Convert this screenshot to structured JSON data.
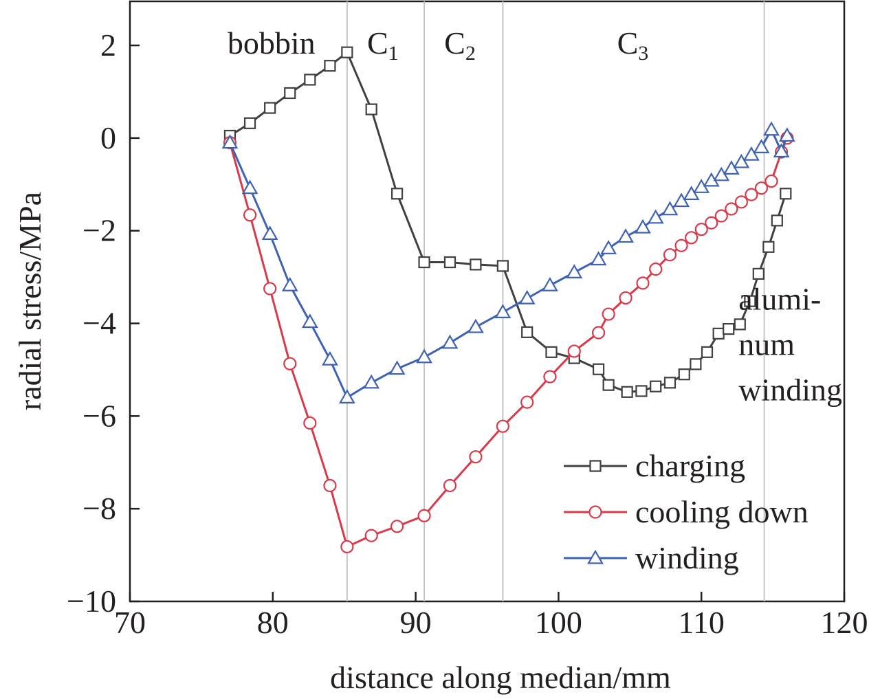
{
  "chart_data": {
    "type": "line",
    "xlabel": "distance along median/mm",
    "ylabel": "radial stress/MPa",
    "xlim": [
      70,
      120
    ],
    "ylim": [
      -10,
      3
    ],
    "xticks": [
      70,
      80,
      90,
      100,
      110,
      120
    ],
    "yticks": [
      -10,
      -8,
      -6,
      -4,
      -2,
      0,
      2
    ],
    "grid": false,
    "legend_position": "bottom-right",
    "region_boundaries": [
      85.2,
      90.6,
      96.1,
      114.4
    ],
    "region_labels": [
      {
        "text": "bobbin",
        "sub": "",
        "x": 79.9
      },
      {
        "text": "C",
        "sub": "1",
        "x": 87.7
      },
      {
        "text": "C",
        "sub": "2",
        "x": 93.1
      },
      {
        "text": "C",
        "sub": "3",
        "x": 105.2
      }
    ],
    "annotation": {
      "lines": [
        "alumi-",
        "num",
        "winding"
      ],
      "x": 112.6,
      "y": -3.7
    },
    "series": [
      {
        "name": "charging",
        "color": "#404040",
        "marker": "square",
        "x": [
          77.0,
          78.4,
          79.8,
          81.2,
          82.6,
          84.0,
          85.2,
          86.9,
          88.7,
          90.6,
          92.4,
          94.2,
          96.1,
          97.8,
          99.5,
          101.1,
          102.8,
          103.5,
          104.8,
          105.8,
          106.8,
          107.8,
          108.8,
          109.6,
          110.4,
          111.2,
          111.9,
          112.7,
          113.4,
          114.0,
          114.7,
          115.3,
          115.9
        ],
        "y": [
          0.05,
          0.32,
          0.65,
          0.97,
          1.26,
          1.56,
          1.85,
          0.62,
          -1.2,
          -2.68,
          -2.68,
          -2.73,
          -2.76,
          -4.19,
          -4.62,
          -4.75,
          -4.99,
          -5.33,
          -5.48,
          -5.46,
          -5.36,
          -5.28,
          -5.1,
          -4.88,
          -4.62,
          -4.22,
          -4.12,
          -4.02,
          -3.52,
          -2.93,
          -2.35,
          -1.78,
          -1.2
        ]
      },
      {
        "name": "cooling down",
        "color": "#d93a4a",
        "marker": "circle",
        "x": [
          77.0,
          78.4,
          79.8,
          81.2,
          82.6,
          84.0,
          85.2,
          86.9,
          88.7,
          90.6,
          92.4,
          94.2,
          96.1,
          97.8,
          99.4,
          101.1,
          102.8,
          103.5,
          104.7,
          105.9,
          106.8,
          107.8,
          108.6,
          109.3,
          110.0,
          110.7,
          111.4,
          112.1,
          112.8,
          113.5,
          114.2,
          114.9,
          115.6,
          116.0
        ],
        "y": [
          -0.1,
          -1.66,
          -3.25,
          -4.87,
          -6.15,
          -7.5,
          -8.82,
          -8.58,
          -8.38,
          -8.15,
          -7.5,
          -6.88,
          -6.22,
          -5.7,
          -5.15,
          -4.6,
          -4.2,
          -3.8,
          -3.45,
          -3.13,
          -2.83,
          -2.52,
          -2.32,
          -2.15,
          -1.97,
          -1.83,
          -1.68,
          -1.53,
          -1.38,
          -1.22,
          -1.08,
          -0.93,
          -0.3,
          0.0
        ]
      },
      {
        "name": "winding",
        "color": "#3e62b3",
        "marker": "triangle",
        "x": [
          77.0,
          78.4,
          79.8,
          81.2,
          82.6,
          84.0,
          85.2,
          86.9,
          88.7,
          90.6,
          92.4,
          94.2,
          96.1,
          97.8,
          99.4,
          101.1,
          102.8,
          103.5,
          104.7,
          105.9,
          106.8,
          107.8,
          108.6,
          109.3,
          110.0,
          110.7,
          111.4,
          112.1,
          112.8,
          113.5,
          114.2,
          114.9,
          115.6,
          116.0
        ],
        "y": [
          -0.1,
          -1.08,
          -2.07,
          -3.18,
          -3.97,
          -4.78,
          -5.6,
          -5.28,
          -4.98,
          -4.73,
          -4.42,
          -4.08,
          -3.76,
          -3.46,
          -3.18,
          -2.9,
          -2.62,
          -2.38,
          -2.13,
          -1.93,
          -1.72,
          -1.54,
          -1.36,
          -1.21,
          -1.06,
          -0.92,
          -0.8,
          -0.66,
          -0.52,
          -0.36,
          -0.2,
          0.18,
          -0.29,
          0.05
        ]
      }
    ]
  }
}
